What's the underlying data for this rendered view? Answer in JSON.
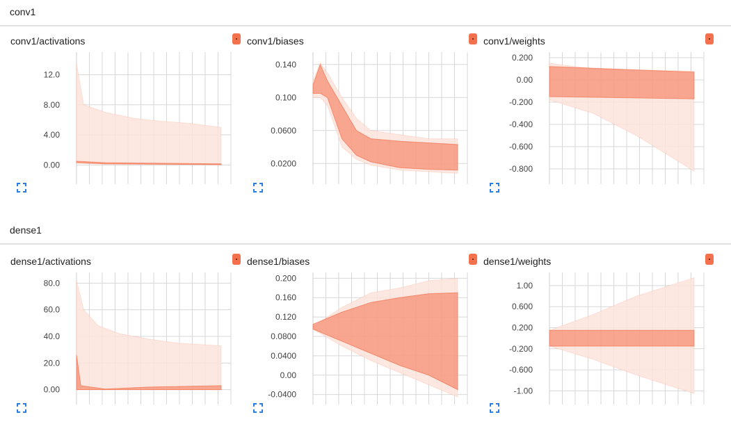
{
  "colors": {
    "accent": "#f4714d",
    "band_light": "#fde3dc",
    "band_mid": "#f9b6a3",
    "grid": "#d7d7d7"
  },
  "sections": [
    {
      "title": "conv1",
      "cards": [
        {
          "title": "conv1/activations",
          "menu_icon": "dot-icon",
          "expand_icon": "fullscreen-icon",
          "chart_data": {
            "type": "area",
            "ylim": [
              -2,
              15
            ],
            "yticks": [
              "12.0",
              "8.00",
              "4.00",
              "0.00"
            ],
            "ytick_values": [
              12,
              8,
              4,
              0
            ],
            "bands": [
              {
                "name": "outer",
                "points": [
                  [
                    0,
                    0.3,
                    13.5
                  ],
                  [
                    0.05,
                    0.2,
                    8
                  ],
                  [
                    0.2,
                    0.1,
                    7
                  ],
                  [
                    0.4,
                    0.1,
                    6.2
                  ],
                  [
                    0.6,
                    0.05,
                    5.8
                  ],
                  [
                    0.8,
                    0.05,
                    5.5
                  ],
                  [
                    1,
                    0.05,
                    5
                  ]
                ]
              },
              {
                "name": "median",
                "points": [
                  [
                    0,
                    0.3,
                    0.5
                  ],
                  [
                    0.2,
                    0.15,
                    0.3
                  ],
                  [
                    1,
                    0.05,
                    0.15
                  ]
                ]
              }
            ]
          }
        },
        {
          "title": "conv1/biases",
          "menu_icon": "dot-icon",
          "expand_icon": "fullscreen-icon",
          "chart_data": {
            "type": "area",
            "ylim": [
              0.0,
              0.155
            ],
            "yticks": [
              "0.140",
              "0.100",
              "0.0600",
              "0.0200"
            ],
            "ytick_values": [
              0.14,
              0.1,
              0.06,
              0.02
            ],
            "bands": [
              {
                "name": "outer",
                "points": [
                  [
                    0,
                    0.1,
                    0.12
                  ],
                  [
                    0.05,
                    0.1,
                    0.142
                  ],
                  [
                    0.1,
                    0.09,
                    0.13
                  ],
                  [
                    0.2,
                    0.04,
                    0.1
                  ],
                  [
                    0.3,
                    0.025,
                    0.075
                  ],
                  [
                    0.4,
                    0.018,
                    0.06
                  ],
                  [
                    0.6,
                    0.012,
                    0.055
                  ],
                  [
                    0.8,
                    0.01,
                    0.05
                  ],
                  [
                    1,
                    0.008,
                    0.05
                  ]
                ]
              },
              {
                "name": "inner",
                "points": [
                  [
                    0,
                    0.105,
                    0.115
                  ],
                  [
                    0.05,
                    0.105,
                    0.14
                  ],
                  [
                    0.1,
                    0.1,
                    0.12
                  ],
                  [
                    0.2,
                    0.05,
                    0.09
                  ],
                  [
                    0.3,
                    0.03,
                    0.06
                  ],
                  [
                    0.4,
                    0.022,
                    0.05
                  ],
                  [
                    0.6,
                    0.015,
                    0.047
                  ],
                  [
                    0.8,
                    0.013,
                    0.045
                  ],
                  [
                    1,
                    0.012,
                    0.043
                  ]
                ]
              }
            ]
          }
        },
        {
          "title": "conv1/weights",
          "menu_icon": "dot-icon",
          "expand_icon": "fullscreen-icon",
          "chart_data": {
            "type": "area",
            "ylim": [
              -0.9,
              0.25
            ],
            "yticks": [
              "0.200",
              "0.00",
              "-0.200",
              "-0.400",
              "-0.600",
              "-0.800"
            ],
            "ytick_values": [
              0.2,
              0,
              -0.2,
              -0.4,
              -0.6,
              -0.8
            ],
            "bands": [
              {
                "name": "outer",
                "points": [
                  [
                    0,
                    -0.18,
                    0.15
                  ],
                  [
                    0.3,
                    -0.3,
                    0.1
                  ],
                  [
                    0.6,
                    -0.5,
                    0.09
                  ],
                  [
                    1,
                    -0.82,
                    0.08
                  ]
                ]
              },
              {
                "name": "inner",
                "points": [
                  [
                    0,
                    -0.15,
                    0.12
                  ],
                  [
                    1,
                    -0.17,
                    0.07
                  ]
                ]
              }
            ]
          }
        }
      ]
    },
    {
      "title": "dense1",
      "cards": [
        {
          "title": "dense1/activations",
          "menu_icon": "dot-icon",
          "expand_icon": "fullscreen-icon",
          "chart_data": {
            "type": "area",
            "ylim": [
              -8,
              88
            ],
            "yticks": [
              "80.0",
              "60.0",
              "40.0",
              "20.0",
              "0.00"
            ],
            "ytick_values": [
              80,
              60,
              40,
              20,
              0
            ],
            "bands": [
              {
                "name": "outer",
                "points": [
                  [
                    0,
                    0,
                    82
                  ],
                  [
                    0.05,
                    0,
                    60
                  ],
                  [
                    0.15,
                    0,
                    48
                  ],
                  [
                    0.3,
                    0,
                    42
                  ],
                  [
                    0.5,
                    0,
                    38
                  ],
                  [
                    0.7,
                    0,
                    35
                  ],
                  [
                    1,
                    0,
                    33
                  ]
                ]
              },
              {
                "name": "inner",
                "points": [
                  [
                    0,
                    0,
                    26
                  ],
                  [
                    0.03,
                    0,
                    3
                  ],
                  [
                    0.2,
                    0,
                    0.5
                  ],
                  [
                    0.5,
                    0,
                    2
                  ],
                  [
                    1,
                    0,
                    3
                  ]
                ]
              }
            ]
          }
        },
        {
          "title": "dense1/biases",
          "menu_icon": "dot-icon",
          "expand_icon": "fullscreen-icon",
          "chart_data": {
            "type": "area",
            "ylim": [
              -0.052,
              0.212
            ],
            "yticks": [
              "0.200",
              "0.160",
              "0.120",
              "0.0800",
              "0.0400",
              "0.00",
              "-0.0400"
            ],
            "ytick_values": [
              0.2,
              0.16,
              0.12,
              0.08,
              0.04,
              0,
              -0.04
            ],
            "bands": [
              {
                "name": "outer",
                "points": [
                  [
                    0,
                    0.095,
                    0.1
                  ],
                  [
                    0.2,
                    0.06,
                    0.14
                  ],
                  [
                    0.4,
                    0.03,
                    0.17
                  ],
                  [
                    0.6,
                    0.005,
                    0.18
                  ],
                  [
                    0.8,
                    -0.02,
                    0.195
                  ],
                  [
                    1,
                    -0.045,
                    0.2
                  ]
                ]
              },
              {
                "name": "inner",
                "points": [
                  [
                    0,
                    0.095,
                    0.105
                  ],
                  [
                    0.2,
                    0.07,
                    0.13
                  ],
                  [
                    0.4,
                    0.045,
                    0.15
                  ],
                  [
                    0.6,
                    0.02,
                    0.16
                  ],
                  [
                    0.8,
                    0,
                    0.168
                  ],
                  [
                    1,
                    -0.03,
                    0.17
                  ]
                ]
              }
            ]
          }
        },
        {
          "title": "dense1/weights",
          "menu_icon": "dot-icon",
          "expand_icon": "fullscreen-icon",
          "chart_data": {
            "type": "area",
            "ylim": [
              -1.18,
              1.25
            ],
            "yticks": [
              "1.00",
              "0.600",
              "0.200",
              "-0.200",
              "-0.600",
              "-1.00"
            ],
            "ytick_values": [
              1,
              0.6,
              0.2,
              -0.2,
              -0.6,
              -1
            ],
            "bands": [
              {
                "name": "outer",
                "points": [
                  [
                    0,
                    -0.15,
                    0.15
                  ],
                  [
                    0.3,
                    -0.4,
                    0.45
                  ],
                  [
                    0.6,
                    -0.7,
                    0.8
                  ],
                  [
                    1,
                    -1.05,
                    1.15
                  ]
                ]
              },
              {
                "name": "inner",
                "points": [
                  [
                    0,
                    -0.15,
                    0.15
                  ],
                  [
                    1,
                    -0.15,
                    0.15
                  ]
                ]
              }
            ]
          }
        }
      ]
    }
  ]
}
